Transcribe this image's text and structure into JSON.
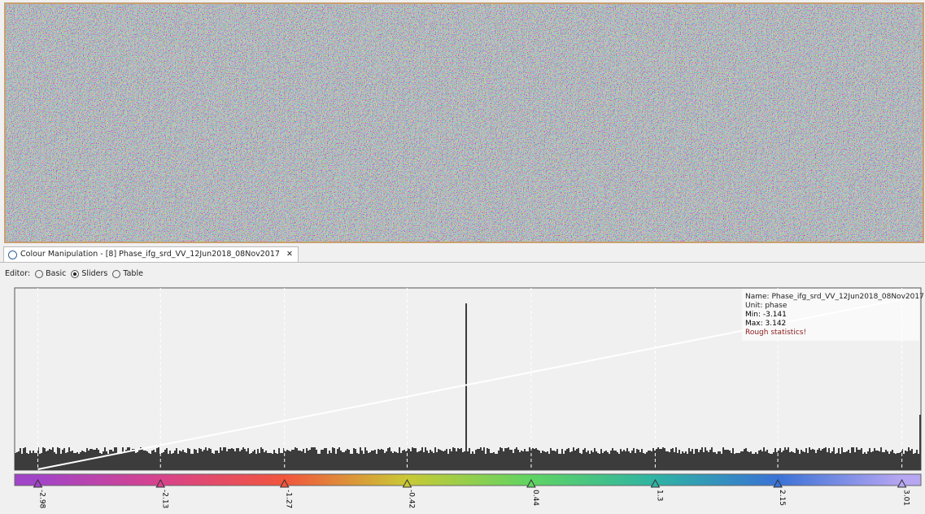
{
  "tab": {
    "title": "Colour Manipulation - [8] Phase_ifg_srd_VV_12Jun2018_08Nov2017"
  },
  "editor": {
    "label": "Editor:",
    "options": [
      "Basic",
      "Sliders",
      "Table"
    ],
    "selected": 1
  },
  "info": {
    "name": "Name: Phase_ifg_srd_VV_12Jun2018_08Nov2017",
    "unit": "Unit: phase",
    "min_label": "Min:",
    "min": -3.141,
    "max_label": "Max:",
    "max": 3.142,
    "warning": "Rough statistics!"
  },
  "sliders": [
    {
      "value": -2.98,
      "color": "#a244c8"
    },
    {
      "value": -2.13,
      "color": "#d8438c"
    },
    {
      "value": -1.27,
      "color": "#f2553c"
    },
    {
      "value": -0.42,
      "color": "#c9c935"
    },
    {
      "value": 0.44,
      "color": "#5fd463"
    },
    {
      "value": 1.3,
      "color": "#2fb3a3"
    },
    {
      "value": 2.15,
      "color": "#3a72d6"
    },
    {
      "value": 3.01,
      "color": "#b7a6f2"
    }
  ]
}
